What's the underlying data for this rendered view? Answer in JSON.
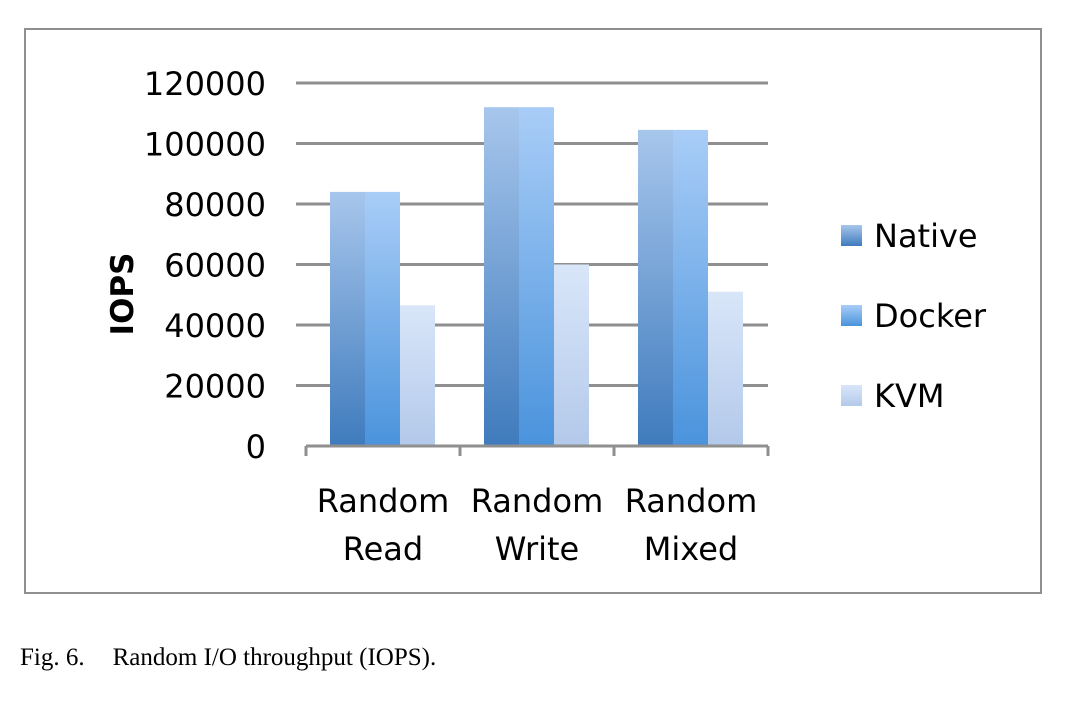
{
  "caption": {
    "figure_number": "Fig. 6.",
    "text": "Random I/O throughput (IOPS)."
  },
  "colors": {
    "Native": "#4a86c8",
    "Docker": "#5a9de0",
    "KVM": "#bcd2f0",
    "gridline": "#8f8f8f",
    "frame": "#8f8f8f"
  },
  "chart_data": {
    "type": "bar",
    "title": "",
    "xlabel": "",
    "ylabel": "IOPS",
    "ylim": [
      0,
      120000
    ],
    "yticks": [
      "0",
      "20000",
      "40000",
      "60000",
      "80000",
      "100000",
      "120000"
    ],
    "grid": true,
    "legend_position": "right",
    "categories": [
      [
        "Random",
        "Read"
      ],
      [
        "Random",
        "Write"
      ],
      [
        "Random",
        "Mixed"
      ]
    ],
    "series": [
      {
        "name": "Native",
        "values": [
          84000,
          112000,
          104500
        ]
      },
      {
        "name": "Docker",
        "values": [
          84000,
          112000,
          104500
        ]
      },
      {
        "name": "KVM",
        "values": [
          46500,
          60000,
          51000
        ]
      }
    ]
  }
}
